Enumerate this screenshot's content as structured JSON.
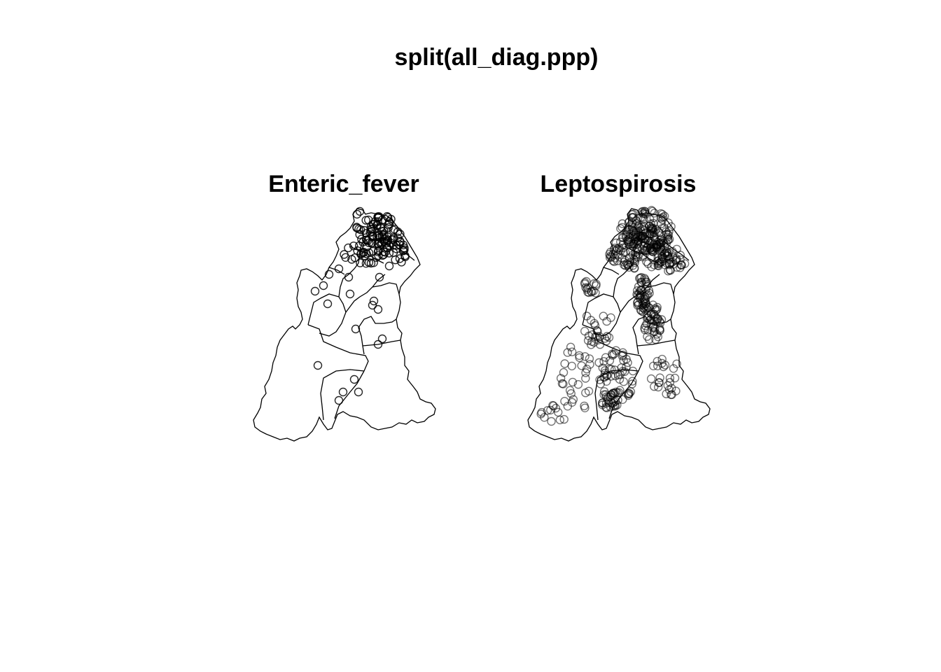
{
  "figure": {
    "main_title": "split(all_diag.ppp)",
    "panels": [
      {
        "id": "enteric",
        "title": "Enteric_fever"
      },
      {
        "id": "lepto",
        "title": "Leptospirosis"
      }
    ]
  },
  "style": {
    "stroke": "#000000",
    "background": "#ffffff"
  }
}
